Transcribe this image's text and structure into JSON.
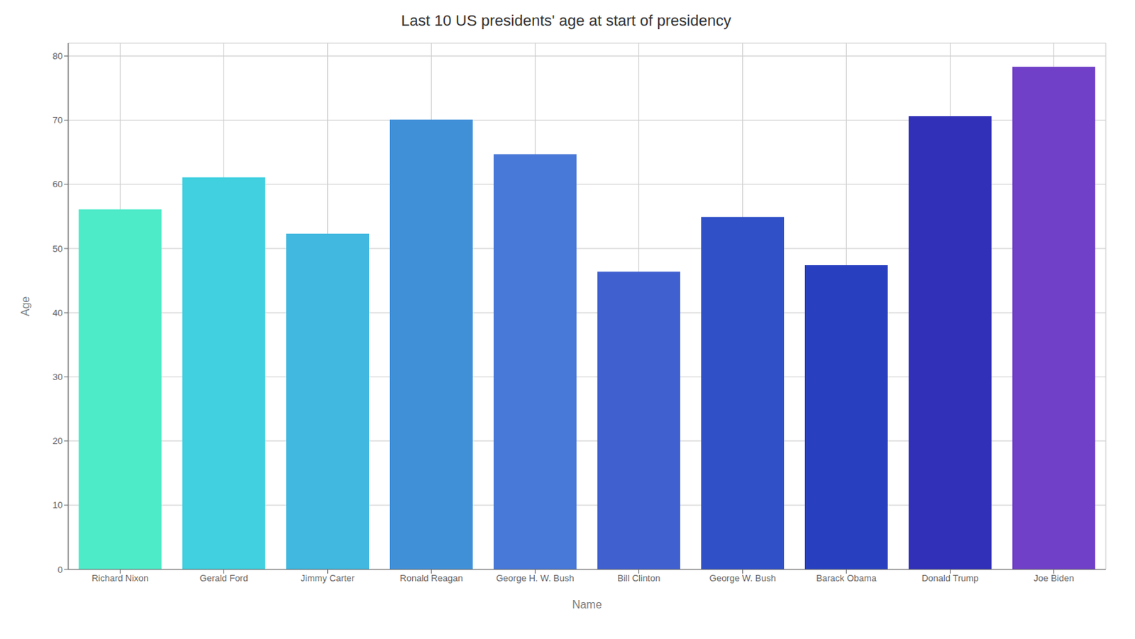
{
  "chart_data": {
    "type": "bar",
    "title": "Last 10 US presidents' age at start of presidency",
    "xlabel": "Name",
    "ylabel": "Age",
    "categories": [
      "Richard Nixon",
      "Gerald Ford",
      "Jimmy Carter",
      "Ronald Reagan",
      "George H. W. Bush",
      "Bill Clinton",
      "George W. Bush",
      "Barack Obama",
      "Donald Trump",
      "Joe Biden"
    ],
    "values": [
      56.1,
      61.1,
      52.3,
      70.1,
      64.7,
      46.4,
      54.9,
      47.4,
      70.6,
      78.3
    ],
    "colors": [
      "#4EEBC8",
      "#40D0E0",
      "#40B8E0",
      "#4090D8",
      "#4878D8",
      "#4060D0",
      "#3050C8",
      "#2840C0",
      "#3030B8",
      "#7040C8"
    ],
    "ylim": [
      0,
      82
    ],
    "yticks": [
      0,
      10,
      20,
      30,
      40,
      50,
      60,
      70,
      80
    ],
    "grid": true
  }
}
